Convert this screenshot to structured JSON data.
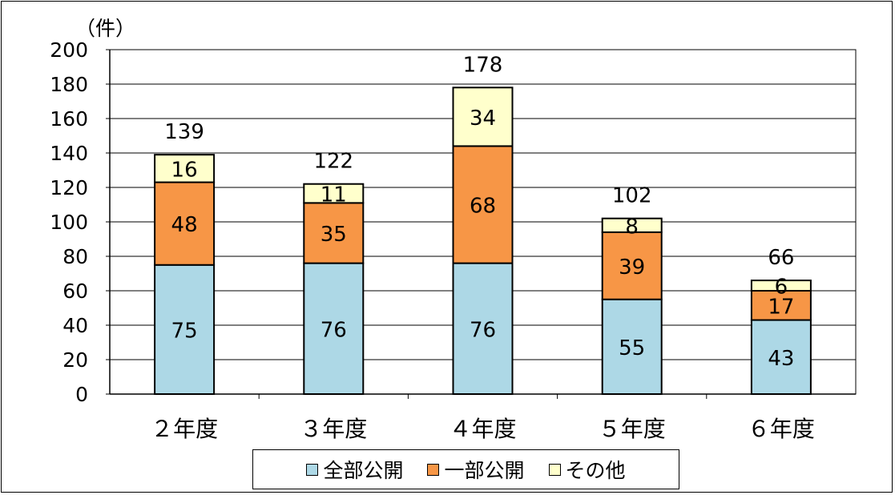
{
  "chart_data": {
    "type": "bar",
    "stacked": true,
    "unit_label": "（件）",
    "categories": [
      "２年度",
      "３年度",
      "４年度",
      "５年度",
      "６年度"
    ],
    "series": [
      {
        "name": "全部公開",
        "values": [
          75,
          76,
          76,
          55,
          43
        ],
        "color": "#add8e6"
      },
      {
        "name": "一部公開",
        "values": [
          48,
          35,
          68,
          39,
          17
        ],
        "color": "#f79646"
      },
      {
        "name": "その他",
        "values": [
          16,
          11,
          34,
          8,
          6
        ],
        "color": "#ffffcc"
      }
    ],
    "totals": [
      139,
      122,
      178,
      102,
      66
    ],
    "ylim": [
      0,
      200
    ],
    "yticks": [
      "0",
      "20",
      "40",
      "60",
      "80",
      "100",
      "120",
      "140",
      "160",
      "180",
      "200"
    ],
    "grid": true,
    "legend_position": "bottom"
  }
}
